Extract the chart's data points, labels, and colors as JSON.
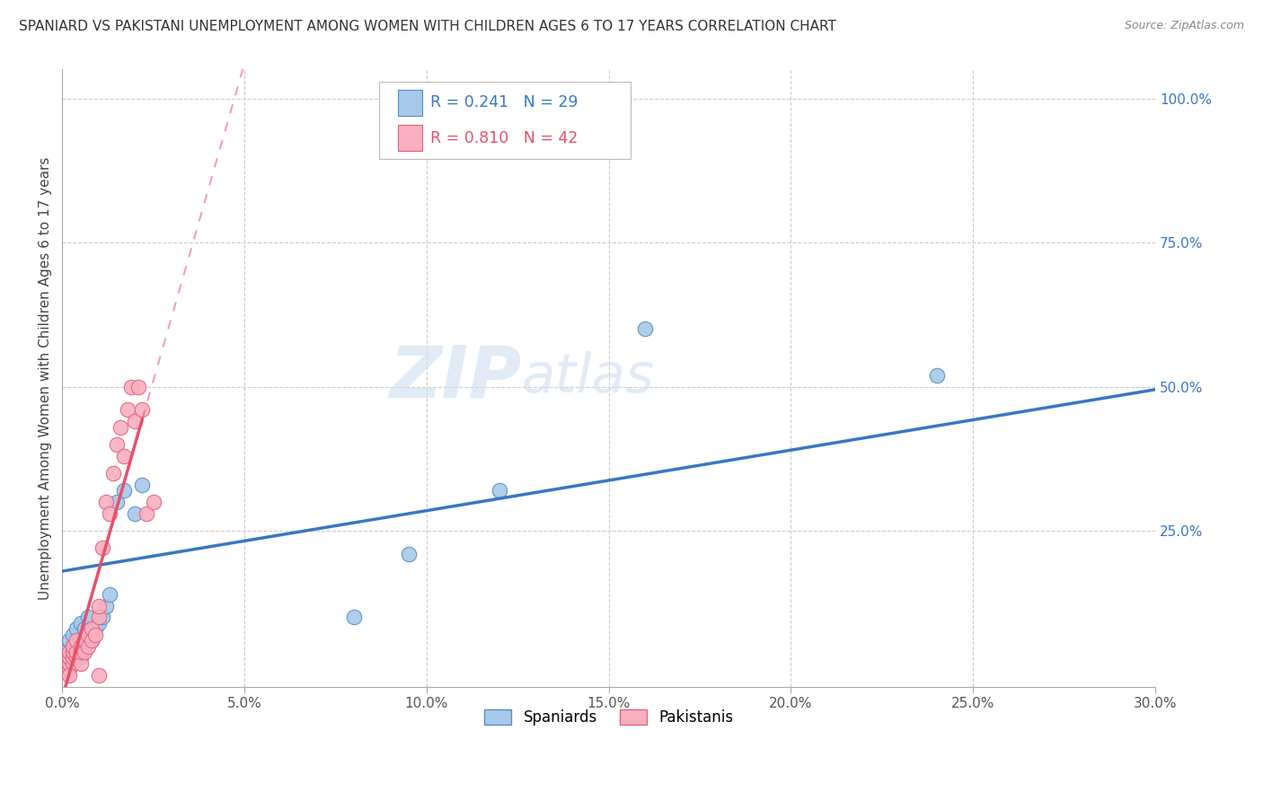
{
  "title": "SPANIARD VS PAKISTANI UNEMPLOYMENT AMONG WOMEN WITH CHILDREN AGES 6 TO 17 YEARS CORRELATION CHART",
  "source": "Source: ZipAtlas.com",
  "ylabel": "Unemployment Among Women with Children Ages 6 to 17 years",
  "xlim": [
    0.0,
    0.3
  ],
  "ylim": [
    -0.02,
    1.05
  ],
  "xtick_labels": [
    "0.0%",
    "5.0%",
    "10.0%",
    "15.0%",
    "20.0%",
    "25.0%",
    "30.0%"
  ],
  "xtick_values": [
    0.0,
    0.05,
    0.1,
    0.15,
    0.2,
    0.25,
    0.3
  ],
  "ytick_right_labels": [
    "25.0%",
    "50.0%",
    "75.0%",
    "100.0%"
  ],
  "ytick_right_values": [
    0.25,
    0.5,
    0.75,
    1.0
  ],
  "spaniards_x": [
    0.001,
    0.002,
    0.002,
    0.003,
    0.003,
    0.004,
    0.004,
    0.005,
    0.005,
    0.005,
    0.006,
    0.006,
    0.007,
    0.007,
    0.008,
    0.009,
    0.01,
    0.011,
    0.012,
    0.013,
    0.015,
    0.017,
    0.02,
    0.022,
    0.08,
    0.095,
    0.12,
    0.16,
    0.24
  ],
  "spaniards_y": [
    0.04,
    0.03,
    0.06,
    0.05,
    0.07,
    0.04,
    0.08,
    0.03,
    0.06,
    0.09,
    0.05,
    0.08,
    0.07,
    0.1,
    0.06,
    0.08,
    0.09,
    0.1,
    0.12,
    0.14,
    0.3,
    0.32,
    0.28,
    0.33,
    0.1,
    0.21,
    0.32,
    0.6,
    0.52
  ],
  "pakistanis_x": [
    0.001,
    0.001,
    0.001,
    0.002,
    0.002,
    0.002,
    0.002,
    0.003,
    0.003,
    0.003,
    0.003,
    0.004,
    0.004,
    0.004,
    0.005,
    0.005,
    0.005,
    0.006,
    0.006,
    0.007,
    0.007,
    0.008,
    0.008,
    0.009,
    0.01,
    0.01,
    0.011,
    0.012,
    0.013,
    0.014,
    0.015,
    0.016,
    0.017,
    0.018,
    0.019,
    0.02,
    0.021,
    0.022,
    0.023,
    0.025,
    0.002,
    0.01
  ],
  "pakistanis_y": [
    0.01,
    0.02,
    0.03,
    0.01,
    0.02,
    0.03,
    0.04,
    0.02,
    0.03,
    0.04,
    0.05,
    0.03,
    0.04,
    0.06,
    0.02,
    0.04,
    0.05,
    0.04,
    0.06,
    0.05,
    0.07,
    0.06,
    0.08,
    0.07,
    0.1,
    0.12,
    0.22,
    0.3,
    0.28,
    0.35,
    0.4,
    0.43,
    0.38,
    0.46,
    0.5,
    0.44,
    0.5,
    0.46,
    0.28,
    0.3,
    0.0,
    0.0
  ],
  "spaniards_color": "#a8c8e8",
  "pakistanis_color": "#f8b0c0",
  "spaniards_edge_color": "#5090c8",
  "pakistanis_edge_color": "#e8607a",
  "spaniards_line_color": "#3878c0",
  "pakistanis_line_color": "#e8506a",
  "sp_line_intercept": 0.18,
  "sp_line_slope": 1.05,
  "pk_line_intercept": -0.04,
  "pk_line_slope": 22.0,
  "R_spaniards": 0.241,
  "N_spaniards": 29,
  "R_pakistanis": 0.81,
  "N_pakistanis": 42,
  "watermark_zip": "ZIP",
  "watermark_atlas": "atlas",
  "background_color": "#ffffff",
  "grid_color": "#cccccc"
}
